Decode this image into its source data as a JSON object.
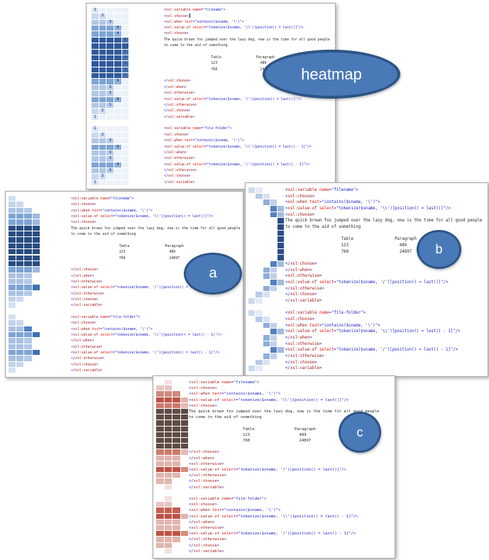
{
  "callouts": {
    "heatmap": "heatmap",
    "a": "a",
    "b": "b",
    "c": "c"
  },
  "colors": {
    "tag": "#a31515",
    "attr": "#e01212",
    "blue": "#2020c8",
    "text": "#1f1f1f",
    "heatmap_number": "#1e4c9f",
    "callout_fill": "#4a79b8",
    "callout_border": "#2d5586",
    "panel_border": "#a8a8a8"
  },
  "code": {
    "cursor_line": 2,
    "lines": [
      [
        [
          "b",
          "<"
        ],
        [
          "t",
          "xsl:variable"
        ],
        [
          "a",
          " name"
        ],
        [
          "b",
          "=\"filename\">"
        ]
      ],
      [
        [
          "b",
          "<"
        ],
        [
          "t",
          "xsl:choose"
        ],
        [
          "b",
          ">"
        ]
      ],
      [
        [
          "b",
          "<"
        ],
        [
          "t",
          "xsl:when"
        ],
        [
          "a",
          " test"
        ],
        [
          "b",
          "=\"contains($sname, '\\')\">"
        ]
      ],
      [
        [
          "b",
          "<"
        ],
        [
          "t",
          "xsl:value-of"
        ],
        [
          "a",
          " select"
        ],
        [
          "b",
          "=\"tokenize($sname, '\\\\')[position() = last()]\"/>"
        ]
      ],
      [
        [
          "b",
          "<"
        ],
        [
          "t",
          "xsl:choose"
        ],
        [
          "b",
          ">"
        ]
      ],
      [
        [
          "x",
          "The quick brown fox jumped over the lazy dog, now is the time for all good people"
        ]
      ],
      [
        [
          "x",
          "to come to the aid of something"
        ]
      ],
      [],
      [
        [
          "x",
          "                       Table                 Paragraph"
        ]
      ],
      [
        [
          "x",
          "                       123                     489"
        ]
      ],
      [
        [
          "x",
          "                       768                     24897"
        ]
      ],
      [],
      [
        [
          "b",
          "</"
        ],
        [
          "t",
          "xsl:choose"
        ],
        [
          "b",
          ">"
        ]
      ],
      [
        [
          "b",
          "</"
        ],
        [
          "t",
          "xsl:when"
        ],
        [
          "b",
          ">"
        ]
      ],
      [
        [
          "b",
          "<"
        ],
        [
          "t",
          "xsl:otherwise"
        ],
        [
          "b",
          ">"
        ]
      ],
      [
        [
          "b",
          "<"
        ],
        [
          "t",
          "xsl:value-of"
        ],
        [
          "a",
          " select"
        ],
        [
          "b",
          "=\"tokenize($sname, '/')[position() = last()]\"/>"
        ]
      ],
      [
        [
          "b",
          "</"
        ],
        [
          "t",
          "xsl:otherwise"
        ],
        [
          "b",
          ">"
        ]
      ],
      [
        [
          "b",
          "</"
        ],
        [
          "t",
          "xsl:choose"
        ],
        [
          "b",
          ">"
        ]
      ],
      [
        [
          "b",
          "</"
        ],
        [
          "t",
          "xsl:variable"
        ],
        [
          "b",
          ">"
        ]
      ],
      [],
      [
        [
          "b",
          "<"
        ],
        [
          "t",
          "xsl:variable"
        ],
        [
          "a",
          " name"
        ],
        [
          "b",
          "=\"file-folder\">"
        ]
      ],
      [
        [
          "b",
          "<"
        ],
        [
          "t",
          "xsl:choose"
        ],
        [
          "b",
          ">"
        ]
      ],
      [
        [
          "b",
          "<"
        ],
        [
          "t",
          "xsl:when"
        ],
        [
          "a",
          " test"
        ],
        [
          "b",
          "=\"contains($sname, '\\')\">"
        ]
      ],
      [
        [
          "b",
          "<"
        ],
        [
          "t",
          "xsl:value-of"
        ],
        [
          "a",
          " select"
        ],
        [
          "b",
          "=\"tokenize($sname, '\\\\')[position() = last() - 1]\"/>"
        ]
      ],
      [
        [
          "b",
          "</"
        ],
        [
          "t",
          "xsl:when"
        ],
        [
          "b",
          ">"
        ]
      ],
      [
        [
          "b",
          "<"
        ],
        [
          "t",
          "xsl:otherwise"
        ],
        [
          "b",
          ">"
        ]
      ],
      [
        [
          "b",
          "<"
        ],
        [
          "t",
          "xsl:value-of"
        ],
        [
          "a",
          " select"
        ],
        [
          "b",
          "=\"tokenize($sname, '/')[position() = last() - 1]\"/>"
        ]
      ],
      [
        [
          "b",
          "</"
        ],
        [
          "t",
          "xsl:otherwise"
        ],
        [
          "b",
          ">"
        ]
      ],
      [
        [
          "b",
          "</"
        ],
        [
          "t",
          "xsl:choose"
        ],
        [
          "b",
          ">"
        ]
      ],
      [
        [
          "b",
          "</"
        ],
        [
          "t",
          "xsl:variable"
        ],
        [
          "b",
          ">"
        ]
      ]
    ]
  },
  "panels": {
    "top": {
      "label": "heatmap",
      "numbered": true,
      "types": {
        "d1": {
          "numcol": 0,
          "cells": [
            "#dce6f3",
            "#ecf2f9",
            "#ecf2f9",
            "#ecf2f9",
            "#ecf2f9"
          ]
        },
        "d2": {
          "numcol": 1,
          "cells": [
            "#c9d8ec",
            "#cfdcef",
            "#ecf2f9",
            "#ecf2f9",
            "#ecf2f9"
          ]
        },
        "d3": {
          "numcol": 2,
          "cells": [
            "#b0c7e6",
            "#b0c7e6",
            "#bbcde9",
            "#ecf2f9",
            "#ecf2f9"
          ]
        },
        "d4": {
          "numcol": 3,
          "cells": [
            "#7ea4d2",
            "#7ea4d2",
            "#7ea4d2",
            "#94b3da",
            "#ecf2f9"
          ]
        },
        "d5": {
          "numcol": 4,
          "cells": [
            "#30599a",
            "#30599a",
            "#30599a",
            "#30599a",
            "#4f77ad"
          ]
        },
        "d5c": {
          "cells": [
            "#30599a",
            "#30599a",
            "#30599a",
            "#30599a",
            "#30599a"
          ]
        },
        "sep": {
          "cells": []
        }
      },
      "rows": [
        [
          "d1",
          "1"
        ],
        [
          "d2",
          "2"
        ],
        [
          "d3",
          "3"
        ],
        [
          "d4",
          "4"
        ],
        [
          "d4",
          "4"
        ],
        [
          "d5",
          "5"
        ],
        [
          "d5c",
          null
        ],
        [
          "d5",
          "5"
        ],
        [
          "d5",
          "5"
        ],
        [
          "d5",
          "5"
        ],
        [
          "d5",
          "5"
        ],
        [
          "d5",
          "5"
        ],
        [
          "d4",
          "4"
        ],
        [
          "d3",
          "3"
        ],
        [
          "d3",
          "3"
        ],
        [
          "d4",
          "4"
        ],
        [
          "d3",
          "3"
        ],
        [
          "d2",
          "2"
        ],
        [
          "d1",
          "1"
        ],
        [
          "sep",
          null
        ],
        [
          "d1",
          "1"
        ],
        [
          "d2",
          "2"
        ],
        [
          "d3",
          "3"
        ],
        [
          "d4",
          "4"
        ],
        [
          "d3",
          "3"
        ],
        [
          "d3",
          "3"
        ],
        [
          "d4",
          "4"
        ],
        [
          "d3",
          "3"
        ],
        [
          "d2",
          "2"
        ],
        [
          "d1",
          "1"
        ]
      ]
    },
    "a": {
      "label": "a",
      "numbered": false,
      "types": {
        "a1": {
          "cells": [
            "#d3e0f0"
          ]
        },
        "a2": {
          "cells": [
            "#c2d3ea",
            "#cbd9ee"
          ]
        },
        "a3": {
          "cells": [
            "#a9c1e2",
            "#a9c1e2",
            "#b5c9e7"
          ]
        },
        "a3x": {
          "cells": [
            "#a9c1e2",
            "#a9c1e2",
            "#4f7fc1"
          ]
        },
        "a4": {
          "cells": [
            "#7da4d3",
            "#7da4d3",
            "#7da4d3",
            "#9db9de"
          ]
        },
        "a4x": {
          "cells": [
            "#7da4d3",
            "#7da4d3",
            "#7da4d3",
            "#3f70b5"
          ]
        },
        "a5": {
          "cells": [
            "#294c82",
            "#294c82",
            "#294c82",
            "#294c82"
          ]
        },
        "sep": {
          "cells": []
        }
      },
      "rows": [
        "a1",
        "a2",
        "a3",
        "a4",
        "a4",
        "a5",
        "a5",
        "a5",
        "a5",
        "a5",
        "a5",
        "a5",
        "a4",
        "a3",
        "a3",
        "a4x",
        "a3",
        "a2",
        "a1",
        "sep",
        "a1",
        "a2",
        "a3x",
        "a4x",
        "a3",
        "a3",
        "a4x",
        "a3",
        "a2",
        "a1"
      ]
    },
    "b": {
      "label": "b",
      "numbered": false,
      "types": {
        "b1": {
          "cells": [
            "#ccdaee",
            "#e4ebf6"
          ]
        },
        "b2": {
          "cells": [
            null,
            "#b7cbe7",
            "#d8e2f2"
          ]
        },
        "b3": {
          "cells": [
            null,
            null,
            "#8fafd8",
            "#c0d1ea"
          ]
        },
        "b4": {
          "cells": [
            null,
            null,
            null,
            "#5581c1",
            "#a3bce0"
          ]
        },
        "b5": {
          "cells": [
            null,
            null,
            null,
            null,
            "#2a4d85"
          ]
        },
        "sep": {
          "cells": []
        }
      },
      "rows": [
        "b1",
        "b2",
        "b3",
        "b4",
        "b4",
        "b5",
        "b5",
        "b5",
        "b5",
        "b5",
        "b5",
        "b5",
        "b4",
        "b3",
        "b3",
        "b4",
        "b3",
        "b2",
        "b1",
        "sep",
        "b1",
        "b2",
        "b3",
        "b4",
        "b3",
        "b3",
        "b4",
        "b3",
        "b2",
        "b1"
      ]
    },
    "c": {
      "label": "c",
      "numbered": false,
      "types": {
        "c1": {
          "cells": [
            null,
            "#f2e1de"
          ]
        },
        "c2": {
          "cells": [
            "#e6c6c0",
            "#e6c6c0"
          ]
        },
        "c2x": {
          "cells": [
            "#e0b5ae",
            "#e0b5ae"
          ]
        },
        "c3": {
          "cells": [
            "#cf8a7f",
            "#cf8a7f",
            "#cf8a7f"
          ]
        },
        "c3s": {
          "cells": [
            "#c55f52",
            "#c55f52",
            "#c55f52"
          ]
        },
        "c3p": {
          "cells": [
            "#e0b5ae",
            "#e0b5ae",
            "#e0b5ae"
          ]
        },
        "c4": {
          "cells": [
            "#bd5346",
            "#bd5346",
            "#bd5346",
            "#e0b3ab"
          ]
        },
        "c4b": {
          "cells": [
            "#cd7b6e",
            "#cd7b6e",
            "#cd7b6e",
            "#e4bcb4"
          ]
        },
        "c4p": {
          "cells": [
            "#bd5346",
            "#bd5346",
            "#bd5346",
            "#d98d7f"
          ]
        },
        "c5": {
          "cells": [
            "#5e4b43",
            "#5e4b43",
            "#5e4b43",
            "#5e4b43"
          ]
        },
        "sep": {
          "cells": []
        }
      },
      "rows": [
        "c1",
        "c2",
        "c3",
        "c4",
        "c4b",
        "c5",
        "c5",
        "c5",
        "c5",
        "c5",
        "c5",
        "c5",
        "c4b",
        "c3p",
        "c3p",
        "c4p",
        "c3p",
        "c2x",
        "c1",
        "sep",
        "c1",
        "c2",
        "c3s",
        "c4",
        "c3p",
        "c3p",
        "c4p",
        "c3p",
        "c2x",
        "c1"
      ]
    }
  }
}
